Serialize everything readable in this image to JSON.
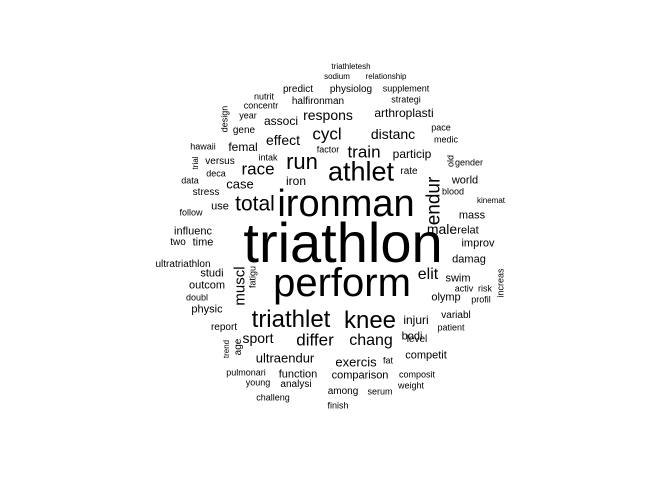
{
  "word_cloud": {
    "text_color": "#000000",
    "background": "#ffffff",
    "words": [
      {
        "text": "triathlon",
        "orientation": "horizontal"
      },
      {
        "text": "ironman",
        "orientation": "horizontal"
      },
      {
        "text": "perform",
        "orientation": "horizontal"
      },
      {
        "text": "athlet",
        "orientation": "horizontal"
      },
      {
        "text": "triathlet",
        "orientation": "horizontal"
      },
      {
        "text": "knee",
        "orientation": "horizontal"
      },
      {
        "text": "total",
        "orientation": "horizontal"
      },
      {
        "text": "run",
        "orientation": "horizontal"
      },
      {
        "text": "endur",
        "orientation": "vertical"
      },
      {
        "text": "race",
        "orientation": "horizontal"
      },
      {
        "text": "train",
        "orientation": "horizontal"
      },
      {
        "text": "cycl",
        "orientation": "horizontal"
      },
      {
        "text": "differ",
        "orientation": "horizontal"
      },
      {
        "text": "chang",
        "orientation": "horizontal"
      },
      {
        "text": "elit",
        "orientation": "horizontal"
      },
      {
        "text": "muscl",
        "orientation": "vertical"
      },
      {
        "text": "distanc",
        "orientation": "horizontal"
      },
      {
        "text": "effect",
        "orientation": "horizontal"
      },
      {
        "text": "respons",
        "orientation": "horizontal"
      },
      {
        "text": "male",
        "orientation": "horizontal"
      },
      {
        "text": "sport",
        "orientation": "horizontal"
      },
      {
        "text": "exercis",
        "orientation": "horizontal"
      },
      {
        "text": "ultraendur",
        "orientation": "horizontal"
      },
      {
        "text": "injuri",
        "orientation": "horizontal"
      },
      {
        "text": "case",
        "orientation": "horizontal"
      },
      {
        "text": "iron",
        "orientation": "horizontal"
      },
      {
        "text": "associ",
        "orientation": "horizontal"
      },
      {
        "text": "femal",
        "orientation": "horizontal"
      },
      {
        "text": "particip",
        "orientation": "horizontal"
      },
      {
        "text": "arthroplasti",
        "orientation": "horizontal"
      },
      {
        "text": "function",
        "orientation": "horizontal"
      },
      {
        "text": "olymp",
        "orientation": "horizontal"
      },
      {
        "text": "studi",
        "orientation": "horizontal"
      },
      {
        "text": "use",
        "orientation": "horizontal"
      },
      {
        "text": "bodi",
        "orientation": "horizontal"
      },
      {
        "text": "comparison",
        "orientation": "horizontal"
      },
      {
        "text": "competit",
        "orientation": "horizontal"
      },
      {
        "text": "damag",
        "orientation": "horizontal"
      },
      {
        "text": "swim",
        "orientation": "horizontal"
      },
      {
        "text": "variabl",
        "orientation": "horizontal"
      },
      {
        "text": "world",
        "orientation": "horizontal"
      },
      {
        "text": "mass",
        "orientation": "horizontal"
      },
      {
        "text": "relat",
        "orientation": "horizontal"
      },
      {
        "text": "improv",
        "orientation": "horizontal"
      },
      {
        "text": "influenc",
        "orientation": "horizontal"
      },
      {
        "text": "time",
        "orientation": "horizontal"
      },
      {
        "text": "two",
        "orientation": "horizontal"
      },
      {
        "text": "outcom",
        "orientation": "horizontal"
      },
      {
        "text": "physic",
        "orientation": "horizontal"
      },
      {
        "text": "report",
        "orientation": "horizontal"
      },
      {
        "text": "age",
        "orientation": "vertical"
      },
      {
        "text": "level",
        "orientation": "horizontal"
      },
      {
        "text": "analysi",
        "orientation": "horizontal"
      },
      {
        "text": "among",
        "orientation": "horizontal"
      },
      {
        "text": "serum",
        "orientation": "horizontal"
      },
      {
        "text": "weight",
        "orientation": "horizontal"
      },
      {
        "text": "composit",
        "orientation": "horizontal"
      },
      {
        "text": "fat",
        "orientation": "horizontal"
      },
      {
        "text": "patient",
        "orientation": "horizontal"
      },
      {
        "text": "profil",
        "orientation": "horizontal"
      },
      {
        "text": "increas",
        "orientation": "vertical"
      },
      {
        "text": "risk",
        "orientation": "horizontal"
      },
      {
        "text": "activ",
        "orientation": "horizontal"
      },
      {
        "text": "ultratriathlon",
        "orientation": "horizontal"
      },
      {
        "text": "doubl",
        "orientation": "horizontal"
      },
      {
        "text": "fatigu",
        "orientation": "vertical"
      },
      {
        "text": "stress",
        "orientation": "horizontal"
      },
      {
        "text": "follow",
        "orientation": "horizontal"
      },
      {
        "text": "data",
        "orientation": "horizontal"
      },
      {
        "text": "deca",
        "orientation": "horizontal"
      },
      {
        "text": "versus",
        "orientation": "horizontal"
      },
      {
        "text": "intak",
        "orientation": "horizontal"
      },
      {
        "text": "hawaii",
        "orientation": "horizontal"
      },
      {
        "text": "trial",
        "orientation": "vertical"
      },
      {
        "text": "gene",
        "orientation": "horizontal"
      },
      {
        "text": "year",
        "orientation": "horizontal"
      },
      {
        "text": "design",
        "orientation": "vertical"
      },
      {
        "text": "concentr",
        "orientation": "horizontal"
      },
      {
        "text": "nutrit",
        "orientation": "horizontal"
      },
      {
        "text": "predict",
        "orientation": "horizontal"
      },
      {
        "text": "halfironman",
        "orientation": "horizontal"
      },
      {
        "text": "physiolog",
        "orientation": "horizontal"
      },
      {
        "text": "supplement",
        "orientation": "horizontal"
      },
      {
        "text": "strategi",
        "orientation": "horizontal"
      },
      {
        "text": "relationship",
        "orientation": "horizontal"
      },
      {
        "text": "sodium",
        "orientation": "horizontal"
      },
      {
        "text": "triathletesh",
        "orientation": "horizontal"
      },
      {
        "text": "pace",
        "orientation": "horizontal"
      },
      {
        "text": "medic",
        "orientation": "horizontal"
      },
      {
        "text": "gender",
        "orientation": "horizontal"
      },
      {
        "text": "old",
        "orientation": "vertical"
      },
      {
        "text": "rate",
        "orientation": "horizontal"
      },
      {
        "text": "blood",
        "orientation": "horizontal"
      },
      {
        "text": "kinemat",
        "orientation": "horizontal"
      },
      {
        "text": "factor",
        "orientation": "horizontal"
      },
      {
        "text": "trend",
        "orientation": "vertical"
      },
      {
        "text": "pulmonari",
        "orientation": "horizontal"
      },
      {
        "text": "young",
        "orientation": "horizontal"
      },
      {
        "text": "challeng",
        "orientation": "horizontal"
      },
      {
        "text": "finish",
        "orientation": "horizontal"
      }
    ]
  }
}
